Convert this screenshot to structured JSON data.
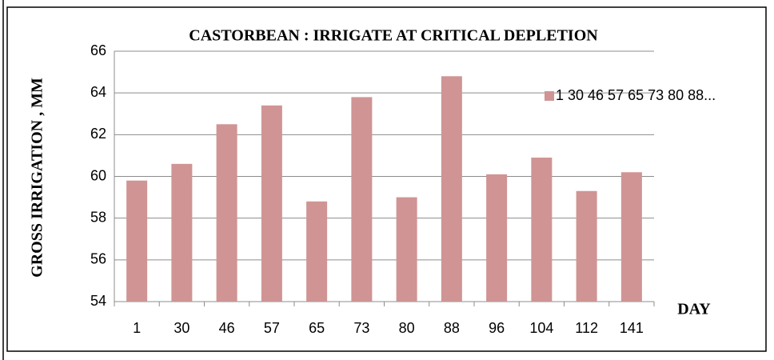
{
  "chart_data": {
    "type": "bar",
    "title": "CASTORBEAN : IRRIGATE AT CRITICAL DEPLETION",
    "x_label": "DAY",
    "y_label": "GROSS IRRIGATION , MM",
    "categories": [
      "1",
      "30",
      "46",
      "57",
      "65",
      "73",
      "80",
      "88",
      "96",
      "104",
      "112",
      "141"
    ],
    "series": [
      {
        "name": "1 30 46 57 65 73 80 88...",
        "color": "#d09494",
        "values": [
          59.8,
          60.6,
          62.5,
          63.4,
          58.8,
          63.8,
          59.0,
          64.8,
          60.1,
          60.9,
          59.3,
          60.2
        ]
      }
    ],
    "ylim": [
      54,
      66
    ],
    "yticks": [
      54,
      56,
      58,
      60,
      62,
      64,
      66
    ],
    "grid": true,
    "legend": "right"
  }
}
